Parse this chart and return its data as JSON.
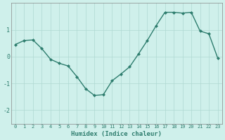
{
  "x": [
    0,
    1,
    2,
    3,
    4,
    5,
    6,
    7,
    8,
    9,
    10,
    11,
    12,
    13,
    14,
    15,
    16,
    17,
    18,
    19,
    20,
    21,
    22,
    23
  ],
  "y": [
    0.45,
    0.6,
    0.62,
    0.3,
    -0.1,
    -0.25,
    -0.35,
    -0.75,
    -1.2,
    -1.45,
    -1.42,
    -0.9,
    -0.65,
    -0.38,
    0.1,
    0.6,
    1.15,
    1.65,
    1.65,
    1.62,
    1.65,
    0.95,
    0.85,
    -0.05
  ],
  "line_color": "#2e7d6e",
  "marker": "D",
  "marker_size": 2,
  "linewidth": 1.0,
  "xlabel": "Humidex (Indice chaleur)",
  "ylabel": "",
  "title": "",
  "background_color": "#cff0eb",
  "grid_color": "#aed8d2",
  "xlim": [
    -0.5,
    23.5
  ],
  "ylim": [
    -2.5,
    2.0
  ],
  "yticks": [
    -2,
    -1,
    0,
    1
  ],
  "xticks": [
    0,
    1,
    2,
    3,
    4,
    5,
    6,
    7,
    8,
    9,
    10,
    11,
    12,
    13,
    14,
    15,
    16,
    17,
    18,
    19,
    20,
    21,
    22,
    23
  ],
  "xtick_labels": [
    "0",
    "1",
    "2",
    "3",
    "4",
    "5",
    "6",
    "7",
    "8",
    "9",
    "10",
    "11",
    "12",
    "13",
    "14",
    "15",
    "16",
    "17",
    "18",
    "19",
    "20",
    "21",
    "22",
    "23"
  ]
}
